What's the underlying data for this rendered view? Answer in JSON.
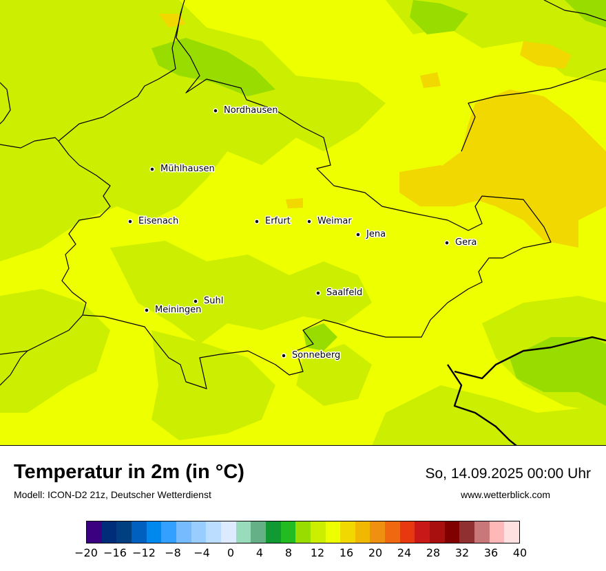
{
  "map": {
    "cities": [
      {
        "name": "Nordhausen"
      },
      {
        "name": "Mühlhausen"
      },
      {
        "name": "Eisenach"
      },
      {
        "name": "Erfurt"
      },
      {
        "name": "Weimar"
      },
      {
        "name": "Jena"
      },
      {
        "name": "Gera"
      },
      {
        "name": "Suhl"
      },
      {
        "name": "Meiningen"
      },
      {
        "name": "Saalfeld"
      },
      {
        "name": "Sonneberg"
      }
    ]
  },
  "header": {
    "title": "Temperatur in 2m (in °C)",
    "subtitle": "Modell: ICON-D2 21z, Deutscher Wetterdienst",
    "datetime": "So, 14.09.2025 00:00 Uhr",
    "website": "www.wetterblick.com"
  },
  "legend": {
    "colors": [
      "#3b0080",
      "#002d7a",
      "#004080",
      "#0060c0",
      "#0088ee",
      "#33a0ff",
      "#77bbff",
      "#99ccff",
      "#bbddff",
      "#dcebff",
      "#99dcbb",
      "#66b088",
      "#119933",
      "#22bb22",
      "#99dd00",
      "#ccee00",
      "#eeff00",
      "#f0d800",
      "#f0b800",
      "#f09010",
      "#f06810",
      "#e83810",
      "#c81818",
      "#a81010",
      "#800000",
      "#903030",
      "#c87878",
      "#ffb8b8",
      "#ffe0e0"
    ],
    "tick_labels": [
      "−20",
      "−16",
      "−12",
      "−8",
      "−4",
      "0",
      "4",
      "8",
      "12",
      "16",
      "20",
      "24",
      "28",
      "32",
      "36",
      "40"
    ]
  },
  "colors": {
    "warm_yellow": "#eeff00",
    "light_green": "#ccee00",
    "green": "#99dd00",
    "orange_yellow": "#f0d800",
    "border": "#000000"
  }
}
